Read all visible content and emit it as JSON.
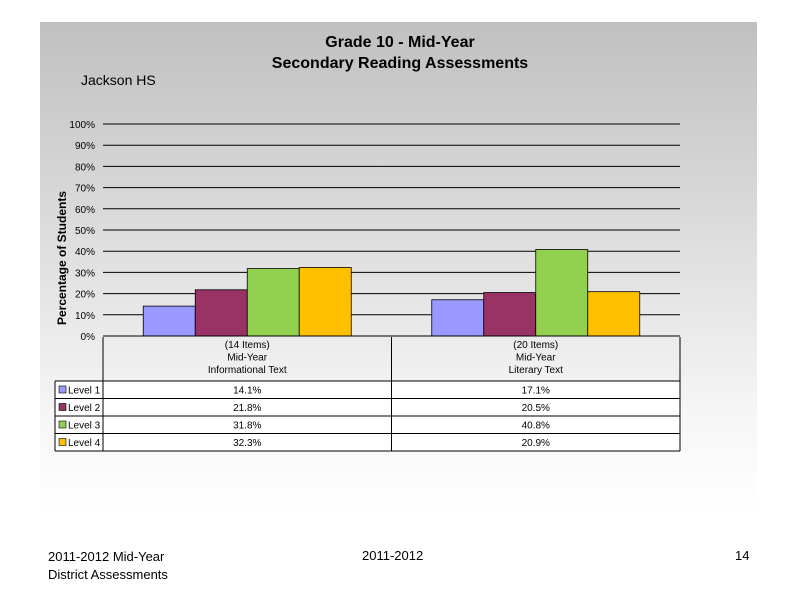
{
  "page": {
    "footer_left_line1": "2011-2012  Mid-Year",
    "footer_left_line2": "District Assessments",
    "footer_center": "2011-2012",
    "page_number": "14"
  },
  "chart_data": {
    "type": "bar",
    "title": "Grade 10 - Mid-Year",
    "subtitle": "Secondary Reading Assessments",
    "school": "Jackson HS",
    "ylabel": "Percentage of Students",
    "ylim": [
      0,
      100
    ],
    "yticks": [
      "0%",
      "10%",
      "20%",
      "30%",
      "40%",
      "50%",
      "60%",
      "70%",
      "80%",
      "90%",
      "100%"
    ],
    "categories": [
      [
        "(14 Items)",
        "Mid-Year",
        "Informational Text"
      ],
      [
        "(20 Items)",
        "Mid-Year",
        "Literary Text"
      ]
    ],
    "series": [
      {
        "name": "Level 1",
        "color": "#9999ff",
        "values": [
          14.1,
          17.1
        ],
        "labels": [
          "14.1%",
          "17.1%"
        ]
      },
      {
        "name": "Level 2",
        "color": "#993366",
        "values": [
          21.8,
          20.5
        ],
        "labels": [
          "21.8%",
          "20.5%"
        ]
      },
      {
        "name": "Level 3",
        "color": "#92d050",
        "values": [
          31.8,
          40.8
        ],
        "labels": [
          "31.8%",
          "40.8%"
        ]
      },
      {
        "name": "Level 4",
        "color": "#ffc000",
        "values": [
          32.3,
          20.9
        ],
        "labels": [
          "32.3%",
          "20.9%"
        ]
      }
    ],
    "grid": true,
    "legend": "data-table"
  }
}
